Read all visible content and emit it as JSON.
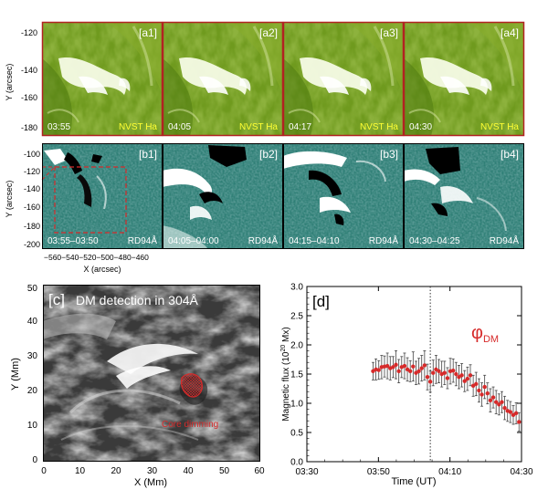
{
  "figure": {
    "panel_a": {
      "ylabel": "Y (arcsec)",
      "yticks": [
        "-120",
        "-140",
        "-160",
        "-180"
      ],
      "tiles": [
        {
          "tag": "[a1]",
          "time": "03:55",
          "instrument": "NVST Ha"
        },
        {
          "tag": "[a2]",
          "time": "04:05",
          "instrument": "NVST Ha"
        },
        {
          "tag": "[a3]",
          "time": "04:17",
          "instrument": "NVST Ha"
        },
        {
          "tag": "[a4]",
          "time": "04:30",
          "instrument": "NVST Ha"
        }
      ]
    },
    "panel_b": {
      "ylabel": "Y (arcsec)",
      "xlabel": "X (arcsec)",
      "yticks": [
        "-100",
        "-120",
        "-140",
        "-160",
        "-180",
        "-200"
      ],
      "xticks_text": "−560−540−520−500−480−460",
      "tiles": [
        {
          "tag": "[b1]",
          "time": "03:55–03:50",
          "instrument": "RD94Å"
        },
        {
          "tag": "[b2]",
          "time": "04:05–04:00",
          "instrument": "RD94Å"
        },
        {
          "tag": "[b3]",
          "time": "04:15–04:10",
          "instrument": "RD94Å"
        },
        {
          "tag": "[b4]",
          "time": "04:30–04:25",
          "instrument": "RD94Å"
        }
      ]
    },
    "panel_c": {
      "tag": "[c]",
      "title": "DM detection in 304Å",
      "annotation": "Core dimming",
      "xlabel": "X (Mm)",
      "ylabel": "Y (Mm)",
      "xticks": [
        "0",
        "10",
        "20",
        "30",
        "40",
        "50",
        "60"
      ],
      "yticks": [
        "0",
        "10",
        "20",
        "30",
        "40",
        "50"
      ]
    },
    "panel_d": {
      "tag": "[d]",
      "legend_main": "φ",
      "legend_sub": "DM",
      "xlabel": "Time (UT)",
      "ylabel_main": "Magnetic flux (10",
      "ylabel_sup": "20",
      "ylabel_end": " Mx)"
    }
  },
  "chart_data": {
    "type": "scatter",
    "title": "",
    "xlabel": "Time (UT)",
    "ylabel": "Magnetic flux (10^20 Mx)",
    "x_tick_labels": [
      "03:30",
      "03:50",
      "04:10",
      "04:30"
    ],
    "x_tick_minutes": [
      0,
      20,
      40,
      60
    ],
    "xlim_minutes": [
      0,
      60
    ],
    "ylim": [
      0.0,
      3.0
    ],
    "y_ticks": [
      "0.0",
      "0.5",
      "1.0",
      "1.5",
      "2.0",
      "2.5",
      "3.0"
    ],
    "vline_minute": 34.5,
    "grid": false,
    "series": [
      {
        "name": "φDM",
        "color": "#d62a2a",
        "x_minutes": [
          18.5,
          19.3,
          20.1,
          20.9,
          21.7,
          22.5,
          23.3,
          24.1,
          24.9,
          25.7,
          26.5,
          27.3,
          28.1,
          28.9,
          29.7,
          30.5,
          31.3,
          32.1,
          32.9,
          33.7,
          34.5,
          35.3,
          36.1,
          36.9,
          37.7,
          38.5,
          39.3,
          40.1,
          40.9,
          41.7,
          42.5,
          43.3,
          44.1,
          44.9,
          45.7,
          46.5,
          47.3,
          48.1,
          48.9,
          49.7,
          50.5,
          51.3,
          52.1,
          52.9,
          53.7,
          54.5,
          55.3,
          56.1,
          56.9,
          57.7,
          58.5,
          59.3
        ],
        "y": [
          1.55,
          1.58,
          1.57,
          1.62,
          1.63,
          1.64,
          1.6,
          1.62,
          1.66,
          1.55,
          1.62,
          1.64,
          1.58,
          1.55,
          1.63,
          1.52,
          1.55,
          1.6,
          1.65,
          1.45,
          1.37,
          1.52,
          1.58,
          1.55,
          1.5,
          1.52,
          1.43,
          1.55,
          1.56,
          1.5,
          1.45,
          1.48,
          1.38,
          1.42,
          1.48,
          1.3,
          1.33,
          1.22,
          1.15,
          1.28,
          1.17,
          1.05,
          1.1,
          1.02,
          0.98,
          1.02,
          0.92,
          0.87,
          0.85,
          0.8,
          0.83,
          0.68
        ],
        "err": [
          0.15,
          0.18,
          0.16,
          0.2,
          0.18,
          0.22,
          0.2,
          0.18,
          0.24,
          0.2,
          0.18,
          0.22,
          0.2,
          0.18,
          0.25,
          0.2,
          0.22,
          0.22,
          0.25,
          0.22,
          0.18,
          0.22,
          0.24,
          0.2,
          0.22,
          0.2,
          0.18,
          0.22,
          0.2,
          0.2,
          0.2,
          0.2,
          0.18,
          0.2,
          0.18,
          0.18,
          0.2,
          0.2,
          0.2,
          0.2,
          0.18,
          0.2,
          0.18,
          0.2,
          0.18,
          0.18,
          0.2,
          0.18,
          0.18,
          0.16,
          0.18,
          0.16
        ]
      }
    ]
  }
}
